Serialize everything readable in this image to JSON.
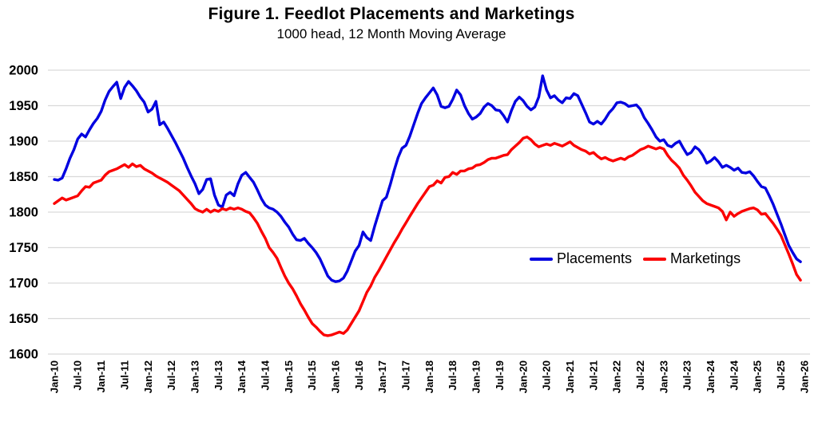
{
  "figure": {
    "title": "Figure 1. Feedlot Placements and Marketings",
    "subtitle": "1000 head, 12 Month Moving Average"
  },
  "legend": {
    "placements_label": "Placements",
    "marketings_label": "Marketings"
  },
  "colors": {
    "placements": "#0000E0",
    "marketings": "#FB0000",
    "gridline": "#D9D9D9",
    "text": "#000000",
    "background": "#FFFFFF"
  },
  "chart_data": {
    "type": "line",
    "title": "Figure 1. Feedlot Placements and Marketings",
    "subtitle": "1000 head, 12 Month Moving Average",
    "x_start": "Jan-2010",
    "x_frequency": "monthly",
    "x_tick_labels": [
      "Jan-10",
      "Jul-10",
      "Jan-11",
      "Jul-11",
      "Jan-12",
      "Jul-12",
      "Jan-13",
      "Jul-13",
      "Jan-14",
      "Jul-14",
      "Jan-15",
      "Jul-15",
      "Jan-16",
      "Jul-16",
      "Jan-17",
      "Jul-17",
      "Jan-18",
      "Jul-18",
      "Jan-19",
      "Jul-19",
      "Jan-20",
      "Jul-20",
      "Jan-21",
      "Jul-21",
      "Jan-22",
      "Jul-22",
      "Jan-23",
      "Jul-23",
      "Jan-24",
      "Jul-24",
      "Jan-25",
      "Jul-25",
      "Jan-26"
    ],
    "y_ticks": [
      1600,
      1650,
      1700,
      1750,
      1800,
      1850,
      1900,
      1950,
      2000
    ],
    "ylim": [
      1600,
      2000
    ],
    "grid": "horizontal",
    "legend_position": "inside-right",
    "series": [
      {
        "name": "Placements",
        "color": "#0000E0",
        "values": [
          1846,
          1845,
          1848,
          1861,
          1876,
          1888,
          1903,
          1910,
          1906,
          1916,
          1925,
          1932,
          1942,
          1958,
          1970,
          1977,
          1983,
          1960,
          1976,
          1984,
          1978,
          1971,
          1962,
          1955,
          1941,
          1945,
          1956,
          1923,
          1927,
          1918,
          1908,
          1898,
          1887,
          1876,
          1863,
          1851,
          1840,
          1826,
          1832,
          1846,
          1847,
          1824,
          1810,
          1807,
          1824,
          1828,
          1823,
          1840,
          1852,
          1856,
          1849,
          1842,
          1831,
          1819,
          1810,
          1806,
          1804,
          1800,
          1794,
          1786,
          1779,
          1769,
          1761,
          1760,
          1763,
          1756,
          1750,
          1743,
          1734,
          1722,
          1710,
          1704,
          1702,
          1703,
          1707,
          1717,
          1731,
          1745,
          1753,
          1772,
          1764,
          1760,
          1780,
          1798,
          1816,
          1821,
          1839,
          1859,
          1877,
          1890,
          1894,
          1907,
          1923,
          1939,
          1953,
          1961,
          1968,
          1975,
          1965,
          1949,
          1947,
          1949,
          1959,
          1972,
          1965,
          1950,
          1939,
          1931,
          1934,
          1939,
          1948,
          1953,
          1950,
          1944,
          1943,
          1936,
          1927,
          1943,
          1956,
          1962,
          1957,
          1949,
          1944,
          1948,
          1962,
          1992,
          1972,
          1961,
          1964,
          1958,
          1954,
          1961,
          1960,
          1967,
          1964,
          1952,
          1940,
          1927,
          1924,
          1928,
          1924,
          1931,
          1940,
          1946,
          1954,
          1955,
          1953,
          1949,
          1950,
          1951,
          1945,
          1933,
          1925,
          1916,
          1906,
          1900,
          1902,
          1894,
          1892,
          1897,
          1900,
          1890,
          1881,
          1884,
          1892,
          1888,
          1880,
          1869,
          1872,
          1877,
          1871,
          1863,
          1866,
          1863,
          1859,
          1862,
          1856,
          1855,
          1857,
          1851,
          1843,
          1836,
          1834,
          1823,
          1811,
          1797,
          1783,
          1768,
          1753,
          1743,
          1734,
          1730
        ]
      },
      {
        "name": "Marketings",
        "color": "#FB0000",
        "values": [
          1812,
          1816,
          1820,
          1817,
          1819,
          1821,
          1823,
          1830,
          1836,
          1835,
          1841,
          1843,
          1845,
          1852,
          1857,
          1859,
          1861,
          1864,
          1867,
          1863,
          1868,
          1864,
          1866,
          1861,
          1858,
          1855,
          1851,
          1848,
          1845,
          1842,
          1838,
          1834,
          1830,
          1824,
          1818,
          1812,
          1805,
          1802,
          1800,
          1804,
          1800,
          1803,
          1801,
          1805,
          1803,
          1806,
          1804,
          1806,
          1804,
          1801,
          1799,
          1792,
          1784,
          1773,
          1763,
          1750,
          1743,
          1735,
          1722,
          1710,
          1700,
          1692,
          1682,
          1671,
          1662,
          1652,
          1643,
          1638,
          1632,
          1627,
          1626,
          1627,
          1629,
          1631,
          1629,
          1634,
          1643,
          1652,
          1661,
          1674,
          1687,
          1696,
          1708,
          1717,
          1727,
          1737,
          1747,
          1757,
          1766,
          1776,
          1785,
          1794,
          1803,
          1812,
          1820,
          1828,
          1836,
          1838,
          1844,
          1841,
          1849,
          1850,
          1856,
          1853,
          1858,
          1858,
          1861,
          1862,
          1866,
          1867,
          1870,
          1874,
          1876,
          1876,
          1878,
          1880,
          1881,
          1888,
          1893,
          1898,
          1904,
          1906,
          1902,
          1896,
          1892,
          1894,
          1896,
          1894,
          1897,
          1895,
          1893,
          1896,
          1899,
          1894,
          1891,
          1888,
          1886,
          1882,
          1884,
          1879,
          1875,
          1877,
          1874,
          1872,
          1874,
          1876,
          1874,
          1878,
          1880,
          1884,
          1888,
          1890,
          1893,
          1891,
          1889,
          1891,
          1889,
          1880,
          1873,
          1868,
          1862,
          1852,
          1845,
          1837,
          1828,
          1822,
          1816,
          1812,
          1810,
          1808,
          1806,
          1801,
          1789,
          1800,
          1794,
          1798,
          1801,
          1803,
          1805,
          1806,
          1803,
          1797,
          1798,
          1791,
          1784,
          1776,
          1767,
          1754,
          1741,
          1727,
          1712,
          1704
        ]
      }
    ]
  }
}
